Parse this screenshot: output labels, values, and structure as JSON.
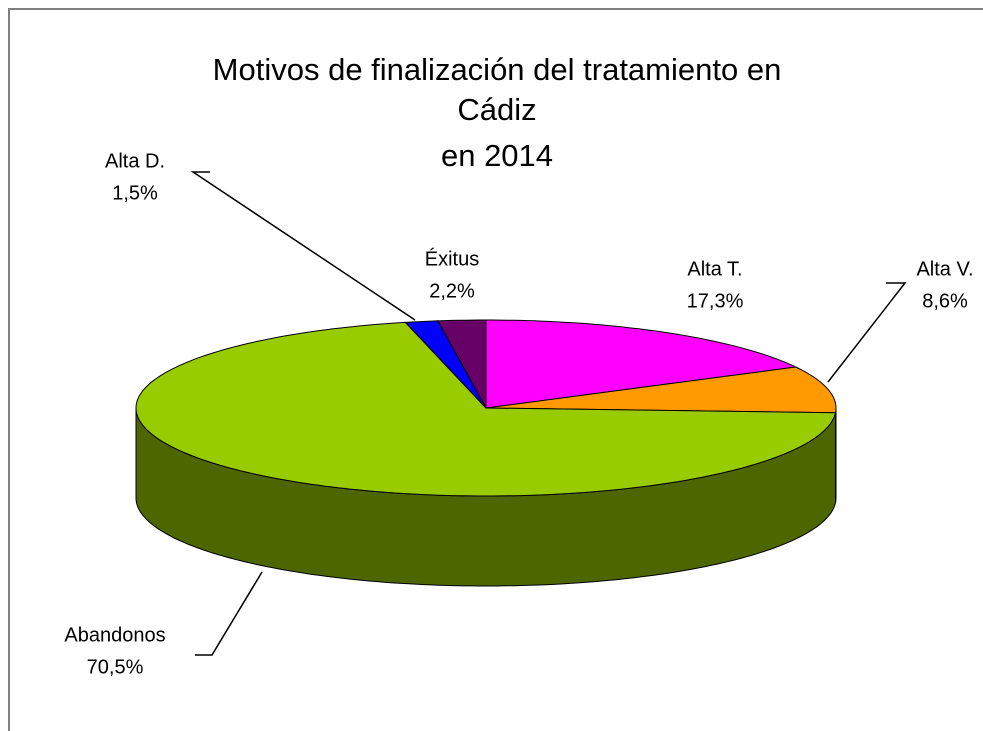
{
  "chart_data": {
    "type": "pie",
    "title": [
      "Motivos de finalización del tratamiento en",
      "Cádiz",
      "en 2014"
    ],
    "categories": [
      "Alta T.",
      "Alta V.",
      "Abandonos",
      "Alta D.",
      "Éxitus"
    ],
    "values": [
      17.3,
      8.6,
      70.5,
      1.5,
      2.2
    ],
    "value_labels": [
      "17,3%",
      "8,6%",
      "70,5%",
      "1,5%",
      "2,2%"
    ],
    "colors": [
      "#ff00ff",
      "#ff9900",
      "#99cc00",
      "#0000ff",
      "#660066"
    ]
  }
}
